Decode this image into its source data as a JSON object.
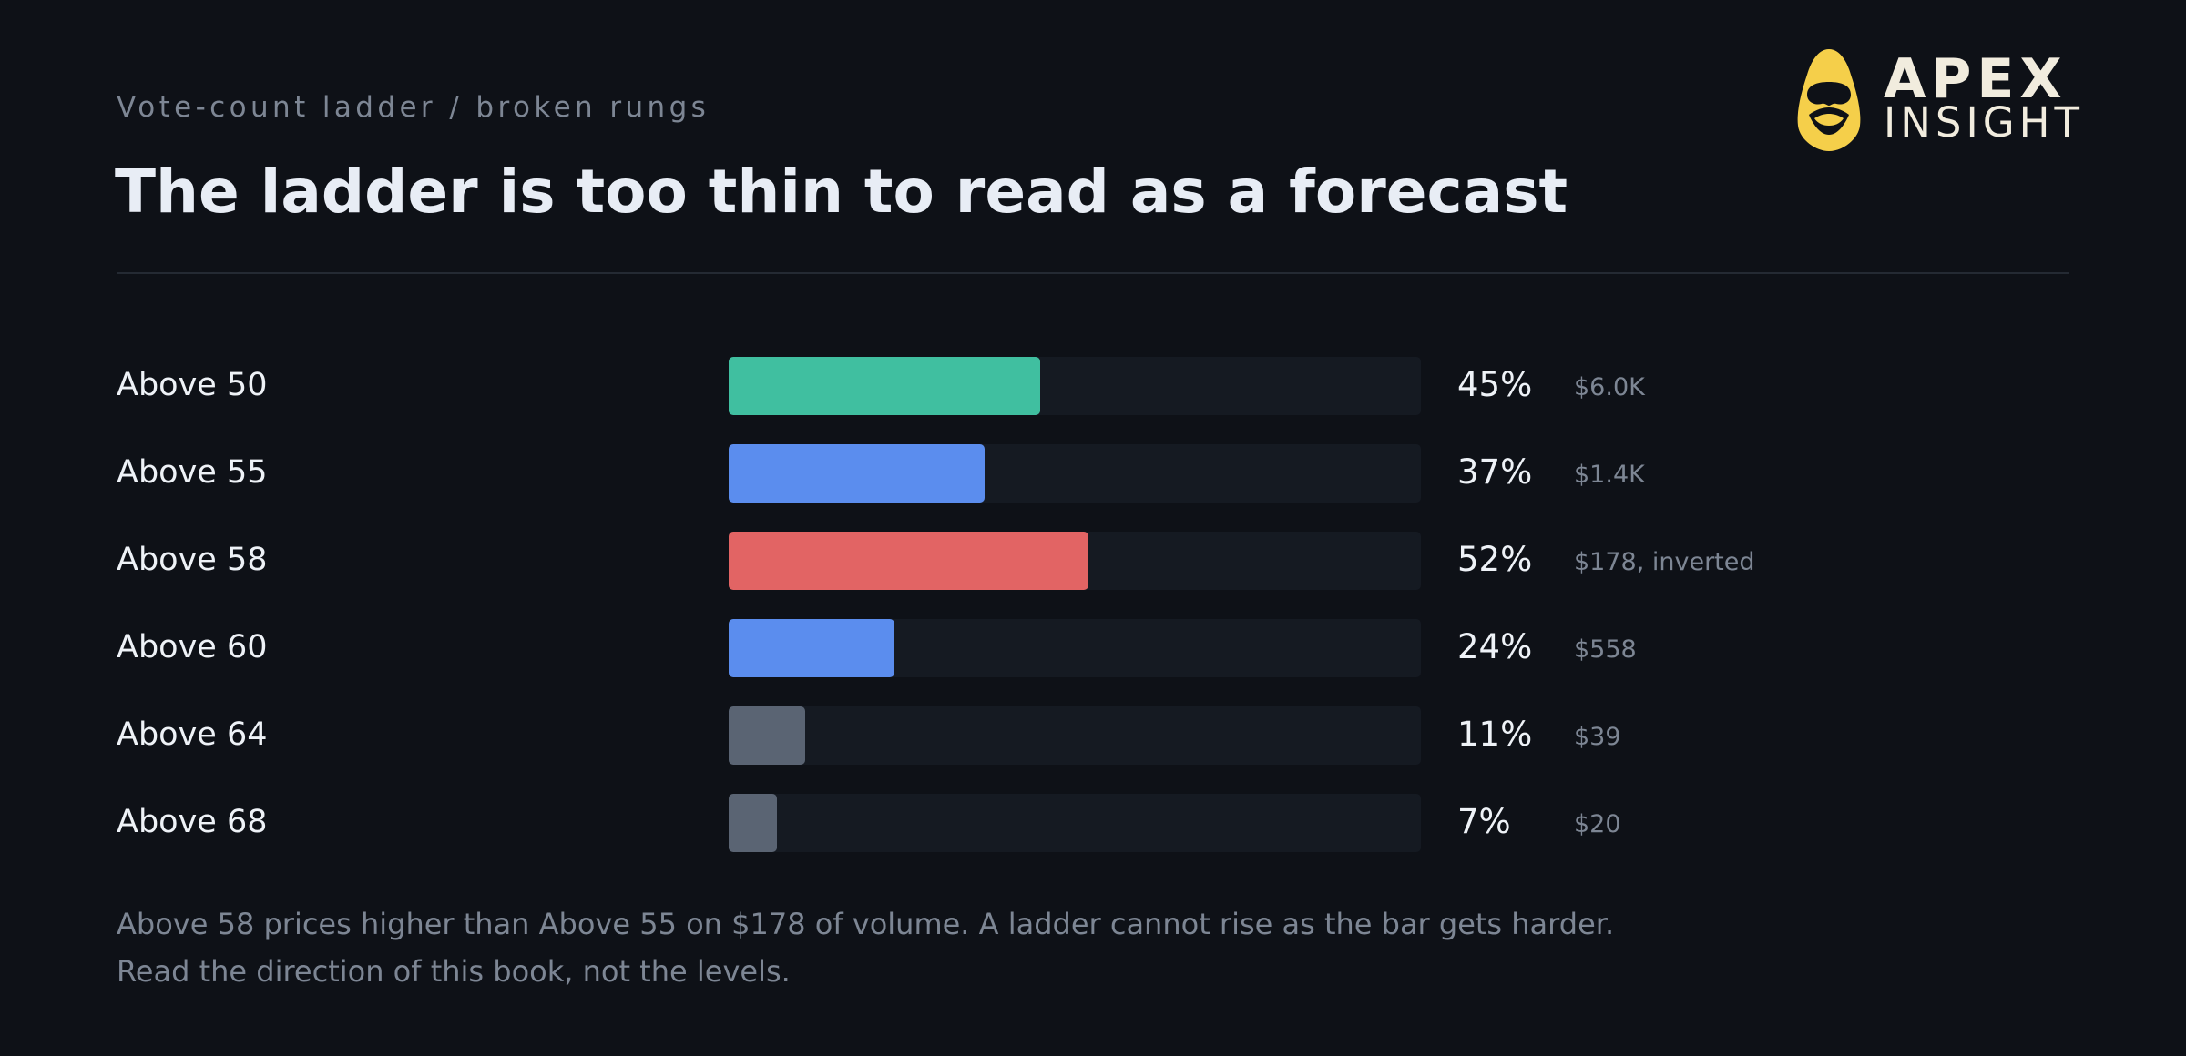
{
  "header": {
    "eyebrow": "Vote-count ladder / broken rungs",
    "title": "The ladder is too thin to read as a forecast"
  },
  "logo": {
    "line1": "APEX",
    "line2": "INSIGHT",
    "icon": "apex-mask-icon",
    "color": "#f5cf4a"
  },
  "chart_data": {
    "type": "bar",
    "orientation": "horizontal",
    "xlim": [
      0,
      100
    ],
    "categories": [
      "Above 50",
      "Above 55",
      "Above 58",
      "Above 60",
      "Above 64",
      "Above 68"
    ],
    "values": [
      45,
      37,
      52,
      24,
      11,
      7
    ],
    "value_labels": [
      "45%",
      "37%",
      "52%",
      "24%",
      "11%",
      "7%"
    ],
    "volume_labels": [
      "$6.0K",
      "$1.4K",
      "$178, inverted",
      "$558",
      "$39",
      "$20"
    ],
    "bar_colors": [
      "#40bfa0",
      "#5b8dee",
      "#e26464",
      "#5b8dee",
      "#5a6473",
      "#5a6473"
    ],
    "track_color": "#151a22"
  },
  "notes": {
    "line1": "Above 58 prices higher than Above 55 on $178 of volume. A ladder cannot rise as the bar gets harder.",
    "line2": "Read the direction of this book, not the levels."
  },
  "colors": {
    "background": "#0e1117",
    "text": "#eef2f7",
    "muted": "#7d8694"
  }
}
